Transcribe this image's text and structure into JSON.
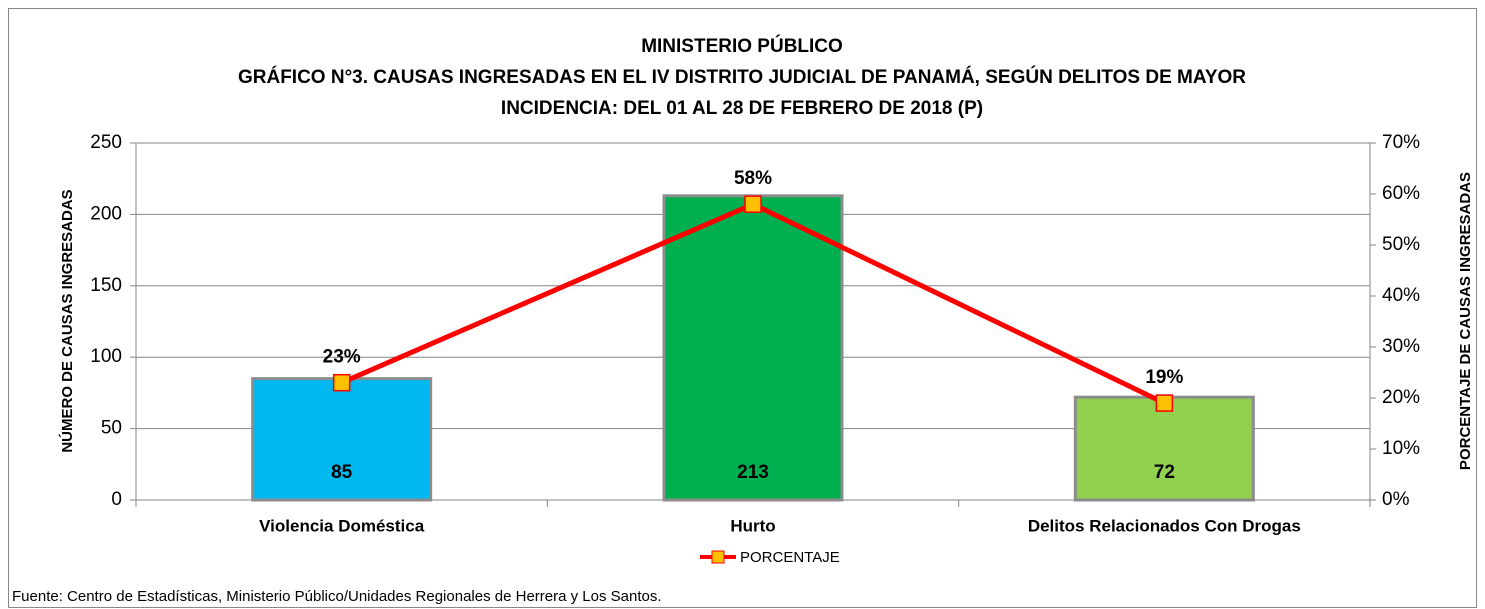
{
  "chart_data": {
    "type": "bar-line",
    "title": [
      "MINISTERIO PÚBLICO",
      "GRÁFICO N°3. CAUSAS INGRESADAS EN EL IV DISTRITO JUDICIAL DE PANAMÁ, SEGÚN DELITOS DE MAYOR",
      "INCIDENCIA: DEL 01 AL 28 DE FEBRERO DE 2018 (P)"
    ],
    "ylabel": "NÚMERO DE CAUSAS INGRESADAS",
    "y2label": "PORCENTAJE DE CAUSAS INGRESADAS",
    "categories": [
      "Violencia Doméstica",
      "Hurto",
      "Delitos Relacionados Con Drogas"
    ],
    "series": [
      {
        "type": "bar",
        "colors": [
          "#00b8f0",
          "#00b050",
          "#92d050"
        ],
        "values": [
          85,
          213,
          72
        ]
      },
      {
        "type": "line",
        "name": "PORCENTAJE",
        "color": "#ff0000",
        "marker_color": "#ffc000",
        "axis": "y2",
        "values": [
          23,
          58,
          19
        ],
        "value_labels": [
          "23%",
          "58%",
          "19%"
        ]
      }
    ],
    "ylim": [
      0,
      250
    ],
    "yticks": [
      0,
      50,
      100,
      150,
      200,
      250
    ],
    "y2lim": [
      0,
      70
    ],
    "y2ticks": [
      {
        "value": 0,
        "label": "0%"
      },
      {
        "value": 10,
        "label": "10%"
      },
      {
        "value": 20,
        "label": "20%"
      },
      {
        "value": 30,
        "label": "30%"
      },
      {
        "value": 40,
        "label": "40%"
      },
      {
        "value": 50,
        "label": "50%"
      },
      {
        "value": 60,
        "label": "60%"
      },
      {
        "value": 70,
        "label": "70%"
      }
    ],
    "grid": true,
    "legend": "bottom",
    "source": "Fuente: Centro de Estadísticas, Ministerio Público/Unidades Regionales de Herrera y Los Santos."
  }
}
